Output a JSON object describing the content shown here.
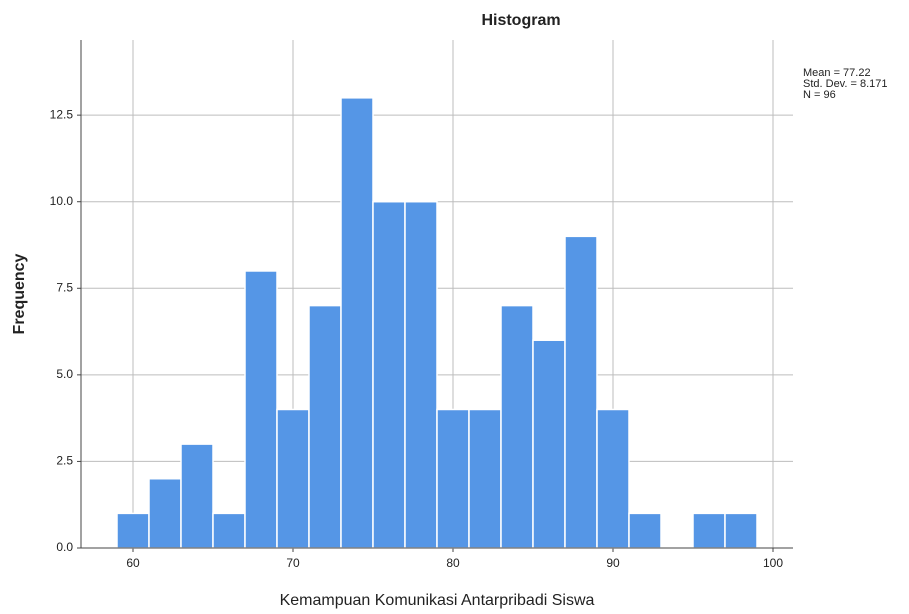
{
  "chart_data": {
    "type": "histogram",
    "title": "Histogram",
    "xlabel": "Kemampuan Komunikasi Antarpribadi Siswa",
    "ylabel": "Frequency",
    "annotations": [
      "Mean = 77.22",
      "Std. Dev. = 8.171",
      "N = 96"
    ],
    "bins": [
      59,
      61,
      63,
      65,
      67,
      69,
      71,
      73,
      75,
      77,
      79,
      81,
      83,
      85,
      87,
      89,
      91,
      93,
      95,
      97,
      99
    ],
    "counts": [
      1,
      2,
      3,
      1,
      8,
      4,
      7,
      13,
      10,
      10,
      4,
      4,
      7,
      6,
      9,
      4,
      1,
      0,
      1,
      1
    ],
    "color": "#5596e6",
    "xlim": [
      56.75,
      101.25
    ],
    "xticks": [
      60,
      70,
      80,
      90,
      100
    ],
    "ylim": [
      0,
      14.67
    ],
    "yticks": [
      {
        "value": 0,
        "label": "0.0"
      },
      {
        "value": 2.5,
        "label": "2.5"
      },
      {
        "value": 5,
        "label": "5.0"
      },
      {
        "value": 7.5,
        "label": "7.5"
      },
      {
        "value": 10,
        "label": "10.0"
      },
      {
        "value": 12.5,
        "label": "12.5"
      }
    ],
    "grid": true
  }
}
